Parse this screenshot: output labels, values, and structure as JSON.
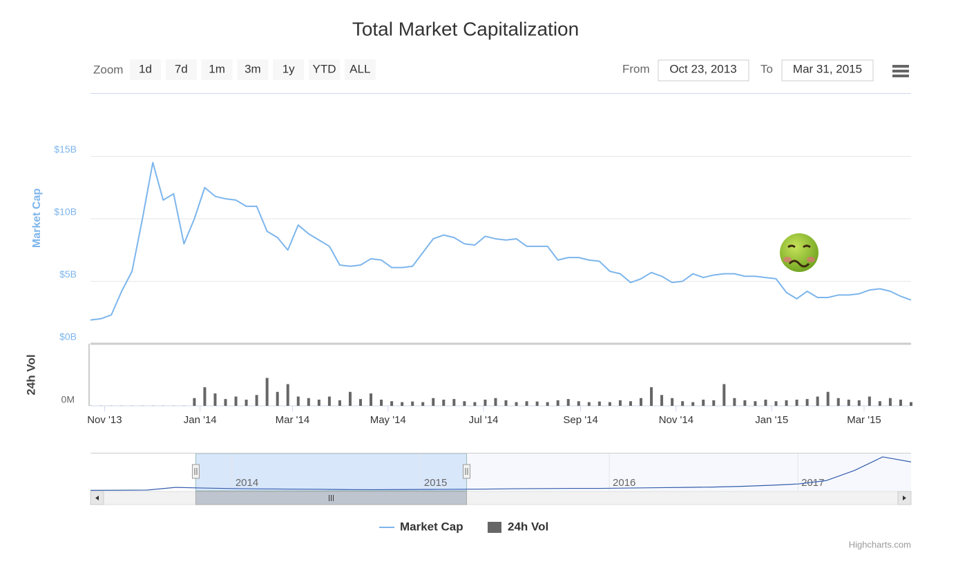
{
  "title": "Total Market Capitalization",
  "range_selector": {
    "label": "Zoom",
    "buttons": [
      "1d",
      "7d",
      "1m",
      "3m",
      "1y",
      "YTD",
      "ALL"
    ],
    "from_label": "From",
    "to_label": "To"
  },
  "credits": "Highcharts.com",
  "chart_data": [
    {
      "type": "line",
      "y_label": "Market Cap",
      "xlim": [
        "Oct 23, 2013",
        "Mar 31, 2015"
      ],
      "xticks": [
        {
          "value": "2013-11",
          "label": "Nov '13"
        },
        {
          "value": "2014-01",
          "label": "Jan '14"
        },
        {
          "value": "2014-03",
          "label": "Mar '14"
        },
        {
          "value": "2014-05",
          "label": "May '14"
        },
        {
          "value": "2014-07",
          "label": "Jul '14"
        },
        {
          "value": "2014-09",
          "label": "Sep '14"
        },
        {
          "value": "2014-11",
          "label": "Nov '14"
        },
        {
          "value": "2015-01",
          "label": "Jan '15"
        },
        {
          "value": "2015-03",
          "label": "Mar '15"
        }
      ],
      "ylim": [
        0,
        20
      ],
      "yticks": [
        {
          "value": 0,
          "label": "$0B"
        },
        {
          "value": 5,
          "label": "$5B"
        },
        {
          "value": 10,
          "label": "$10B"
        },
        {
          "value": 15,
          "label": "$15B"
        }
      ],
      "grid": true,
      "series": [
        {
          "name": "Market Cap",
          "color": "#7cb5ec",
          "values": [
            1.9,
            2.0,
            2.3,
            4.2,
            5.8,
            10.0,
            14.5,
            11.5,
            12.0,
            8.0,
            10.0,
            12.5,
            11.8,
            11.6,
            11.5,
            11.0,
            11.0,
            9.0,
            8.5,
            7.5,
            9.5,
            8.8,
            8.3,
            7.8,
            6.3,
            6.2,
            6.3,
            6.8,
            6.7,
            6.1,
            6.1,
            6.2,
            7.3,
            8.4,
            8.7,
            8.5,
            8.0,
            7.9,
            8.6,
            8.4,
            8.3,
            8.4,
            7.8,
            7.8,
            7.8,
            6.7,
            6.9,
            6.9,
            6.7,
            6.6,
            5.8,
            5.6,
            4.9,
            5.2,
            5.7,
            5.4,
            4.9,
            5.0,
            5.6,
            5.3,
            5.5,
            5.6,
            5.6,
            5.4,
            5.4,
            5.3,
            5.2,
            4.1,
            3.6,
            4.2,
            3.7,
            3.7,
            3.9,
            3.9,
            4.0,
            4.3,
            4.4,
            4.2,
            3.8,
            3.5
          ]
        }
      ]
    },
    {
      "type": "bar",
      "y_label": "24h Vol",
      "ylim": [
        0,
        200
      ],
      "yticks": [
        {
          "value": 0,
          "label": "0M"
        }
      ],
      "series": [
        {
          "name": "24h Vol",
          "color": "#666666",
          "values": [
            0.5,
            0.5,
            0.5,
            0.5,
            0.5,
            0.5,
            0.5,
            0.5,
            0.5,
            0.5,
            25,
            60,
            40,
            22,
            30,
            20,
            35,
            90,
            45,
            70,
            30,
            25,
            20,
            30,
            18,
            45,
            22,
            40,
            20,
            15,
            12,
            14,
            12,
            25,
            20,
            22,
            15,
            12,
            20,
            25,
            18,
            12,
            15,
            14,
            12,
            18,
            22,
            15,
            12,
            14,
            12,
            18,
            15,
            25,
            60,
            35,
            25,
            15,
            12,
            20,
            18,
            70,
            25,
            18,
            15,
            20,
            15,
            18,
            20,
            22,
            30,
            45,
            25,
            20,
            18,
            30,
            15,
            25,
            20,
            12
          ]
        }
      ]
    },
    {
      "type": "line",
      "xlim": [
        2013.25,
        2017.6
      ],
      "xticks": [
        2014,
        2015,
        2016,
        2017
      ],
      "ylim": [
        0,
        110
      ],
      "series": [
        {
          "color": "#335cad",
          "values": [
            1.3,
            1.5,
            2.0,
            10,
            8,
            6.5,
            5.5,
            5,
            4.5,
            3.5,
            3.2,
            3.5,
            4,
            4.5,
            5,
            6,
            6.5,
            7,
            7,
            8,
            9,
            10,
            11,
            13,
            16,
            20,
            30,
            60,
            100,
            85
          ]
        }
      ]
    }
  ]
}
